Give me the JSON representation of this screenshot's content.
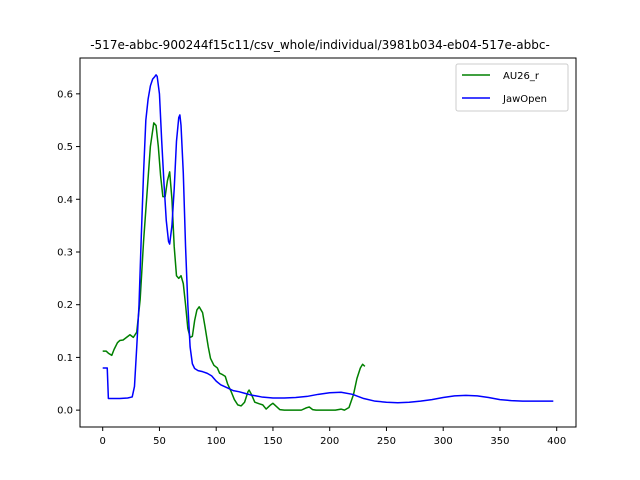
{
  "chart_data": {
    "type": "line",
    "title": "-517e-abbc-900244f15c11/csv_whole/individual/3981b034-eb04-517e-abbc-",
    "xlabel": "",
    "ylabel": "",
    "xlim": [
      -20,
      417
    ],
    "ylim": [
      -0.032,
      0.668
    ],
    "xticks": [
      0,
      50,
      100,
      150,
      200,
      250,
      300,
      350,
      400
    ],
    "yticks": [
      0.0,
      0.1,
      0.2,
      0.3,
      0.4,
      0.5,
      0.6
    ],
    "ytick_labels": [
      "0.0",
      "0.1",
      "0.2",
      "0.3",
      "0.4",
      "0.5",
      "0.6"
    ],
    "grid": false,
    "legend_position": "upper right",
    "series": [
      {
        "name": "AU26_r",
        "color": "#008000",
        "points": [
          [
            0,
            0.112
          ],
          [
            3,
            0.112
          ],
          [
            5,
            0.108
          ],
          [
            8,
            0.104
          ],
          [
            10,
            0.115
          ],
          [
            13,
            0.128
          ],
          [
            15,
            0.132
          ],
          [
            18,
            0.133
          ],
          [
            21,
            0.138
          ],
          [
            24,
            0.143
          ],
          [
            27,
            0.138
          ],
          [
            30,
            0.148
          ],
          [
            33,
            0.21
          ],
          [
            36,
            0.32
          ],
          [
            39,
            0.41
          ],
          [
            42,
            0.5
          ],
          [
            45,
            0.545
          ],
          [
            47,
            0.54
          ],
          [
            49,
            0.5
          ],
          [
            51,
            0.445
          ],
          [
            53,
            0.405
          ],
          [
            55,
            0.405
          ],
          [
            57,
            0.435
          ],
          [
            59,
            0.452
          ],
          [
            61,
            0.4
          ],
          [
            63,
            0.31
          ],
          [
            65,
            0.255
          ],
          [
            67,
            0.25
          ],
          [
            69,
            0.255
          ],
          [
            71,
            0.24
          ],
          [
            73,
            0.2
          ],
          [
            75,
            0.155
          ],
          [
            77,
            0.138
          ],
          [
            79,
            0.14
          ],
          [
            81,
            0.17
          ],
          [
            83,
            0.19
          ],
          [
            85,
            0.196
          ],
          [
            88,
            0.185
          ],
          [
            90,
            0.16
          ],
          [
            93,
            0.12
          ],
          [
            95,
            0.098
          ],
          [
            98,
            0.085
          ],
          [
            101,
            0.08
          ],
          [
            103,
            0.07
          ],
          [
            105,
            0.068
          ],
          [
            108,
            0.064
          ],
          [
            110,
            0.05
          ],
          [
            113,
            0.036
          ],
          [
            116,
            0.02
          ],
          [
            119,
            0.01
          ],
          [
            122,
            0.008
          ],
          [
            125,
            0.015
          ],
          [
            128,
            0.035
          ],
          [
            129,
            0.038
          ],
          [
            131,
            0.03
          ],
          [
            134,
            0.015
          ],
          [
            138,
            0.012
          ],
          [
            141,
            0.01
          ],
          [
            144,
            0.002
          ],
          [
            148,
            0.01
          ],
          [
            150,
            0.013
          ],
          [
            153,
            0.007
          ],
          [
            156,
            0.001
          ],
          [
            160,
            0.0
          ],
          [
            165,
            0.0
          ],
          [
            170,
            0.0
          ],
          [
            175,
            0.0
          ],
          [
            179,
            0.004
          ],
          [
            182,
            0.006
          ],
          [
            185,
            0.001
          ],
          [
            188,
            0.0
          ],
          [
            195,
            0.0
          ],
          [
            200,
            0.0
          ],
          [
            205,
            0.0
          ],
          [
            210,
            0.002
          ],
          [
            213,
            0.0
          ],
          [
            217,
            0.005
          ],
          [
            221,
            0.03
          ],
          [
            224,
            0.06
          ],
          [
            227,
            0.08
          ],
          [
            229,
            0.087
          ],
          [
            231,
            0.083
          ]
        ]
      },
      {
        "name": "JawOpen",
        "color": "#0000ff",
        "points": [
          [
            0,
            0.08
          ],
          [
            3,
            0.08
          ],
          [
            4,
            0.08
          ],
          [
            5,
            0.022
          ],
          [
            8,
            0.022
          ],
          [
            15,
            0.022
          ],
          [
            22,
            0.023
          ],
          [
            26,
            0.025
          ],
          [
            28,
            0.045
          ],
          [
            30,
            0.12
          ],
          [
            32,
            0.2
          ],
          [
            34,
            0.33
          ],
          [
            36,
            0.45
          ],
          [
            38,
            0.55
          ],
          [
            40,
            0.59
          ],
          [
            42,
            0.615
          ],
          [
            44,
            0.628
          ],
          [
            46,
            0.633
          ],
          [
            47,
            0.636
          ],
          [
            48,
            0.633
          ],
          [
            50,
            0.6
          ],
          [
            52,
            0.51
          ],
          [
            54,
            0.43
          ],
          [
            56,
            0.36
          ],
          [
            58,
            0.32
          ],
          [
            59,
            0.315
          ],
          [
            61,
            0.35
          ],
          [
            63,
            0.42
          ],
          [
            65,
            0.51
          ],
          [
            67,
            0.555
          ],
          [
            68,
            0.56
          ],
          [
            69,
            0.54
          ],
          [
            71,
            0.45
          ],
          [
            73,
            0.31
          ],
          [
            75,
            0.2
          ],
          [
            77,
            0.12
          ],
          [
            79,
            0.088
          ],
          [
            81,
            0.079
          ],
          [
            84,
            0.075
          ],
          [
            88,
            0.073
          ],
          [
            92,
            0.07
          ],
          [
            96,
            0.065
          ],
          [
            100,
            0.055
          ],
          [
            104,
            0.048
          ],
          [
            110,
            0.042
          ],
          [
            115,
            0.037
          ],
          [
            120,
            0.035
          ],
          [
            125,
            0.032
          ],
          [
            130,
            0.029
          ],
          [
            135,
            0.027
          ],
          [
            140,
            0.025
          ],
          [
            145,
            0.024
          ],
          [
            150,
            0.023
          ],
          [
            160,
            0.023
          ],
          [
            170,
            0.024
          ],
          [
            180,
            0.026
          ],
          [
            190,
            0.03
          ],
          [
            200,
            0.033
          ],
          [
            210,
            0.034
          ],
          [
            220,
            0.03
          ],
          [
            230,
            0.022
          ],
          [
            240,
            0.017
          ],
          [
            250,
            0.015
          ],
          [
            260,
            0.014
          ],
          [
            270,
            0.015
          ],
          [
            280,
            0.017
          ],
          [
            290,
            0.02
          ],
          [
            300,
            0.024
          ],
          [
            310,
            0.027
          ],
          [
            320,
            0.028
          ],
          [
            330,
            0.027
          ],
          [
            340,
            0.024
          ],
          [
            350,
            0.02
          ],
          [
            360,
            0.018
          ],
          [
            370,
            0.017
          ],
          [
            380,
            0.017
          ],
          [
            390,
            0.017
          ],
          [
            397,
            0.017
          ]
        ]
      }
    ]
  }
}
